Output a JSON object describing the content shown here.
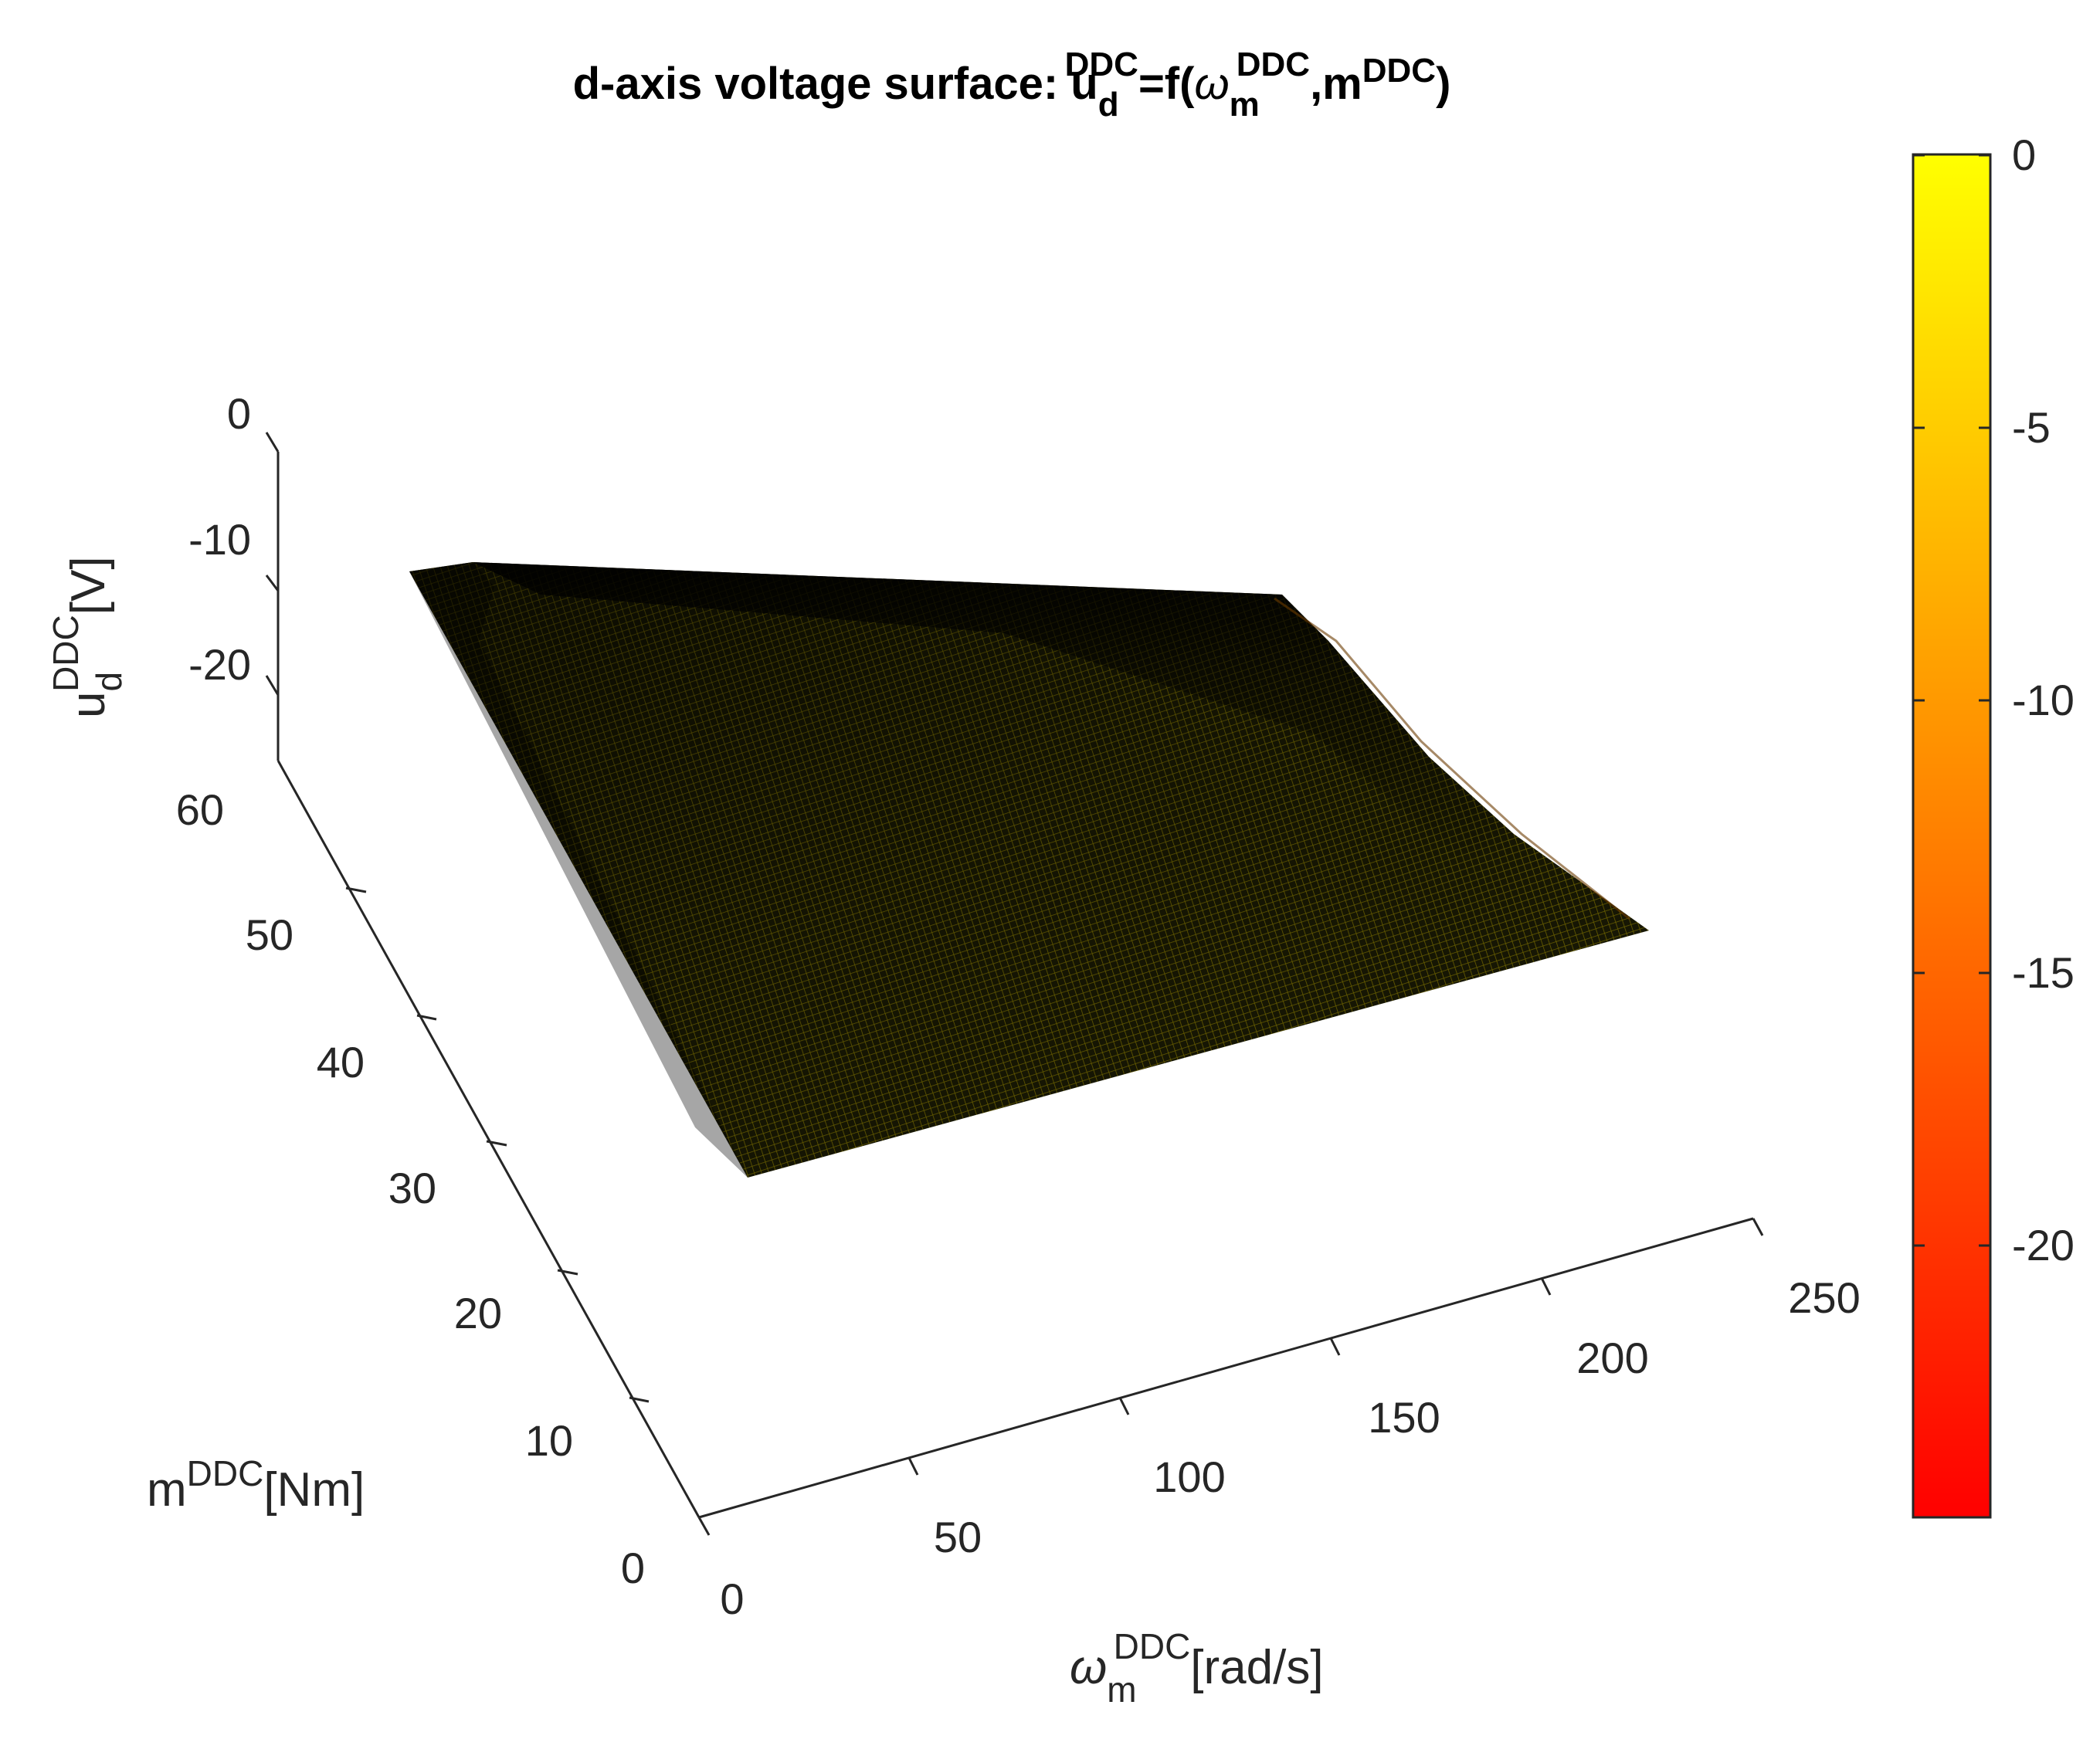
{
  "chart_data": {
    "type": "surface",
    "title": {
      "prefix": "d-axis voltage surface: u",
      "sub1": "d",
      "sup1": "DDC",
      "mid": "=f(",
      "omega": "ω",
      "sub2": "m",
      "sup2": "DDC",
      "comma": ",m",
      "sup3": "DDC",
      "close": ")"
    },
    "x_axis": {
      "label": {
        "symbol": "ω",
        "sub": "m",
        "sup": "DDC",
        "unit": "[rad/s]"
      },
      "ticks": [
        "0",
        "50",
        "100",
        "150",
        "200",
        "250"
      ],
      "range": [
        0,
        250
      ]
    },
    "y_axis": {
      "label": {
        "base": "m",
        "sup": "DDC",
        "unit": "[Nm]"
      },
      "ticks": [
        "0",
        "10",
        "20",
        "30",
        "40",
        "50",
        "60"
      ],
      "range": [
        0,
        60
      ]
    },
    "z_axis": {
      "label": {
        "base": "u",
        "sub": "d",
        "sup": "DDC",
        "unit": "[V]"
      },
      "ticks": [
        "0",
        "-10",
        "-20"
      ],
      "range": [
        -25,
        0
      ]
    },
    "colorbar": {
      "ticks": [
        "0",
        "-5",
        "-10",
        "-15",
        "-20"
      ],
      "range": [
        -25,
        0
      ],
      "colormap": "autumn",
      "colors": {
        "top": "#ffff00",
        "mid": "#ff8000",
        "bottom": "#ff0000"
      }
    },
    "surface_corners": [
      {
        "omega": 0,
        "m": 60,
        "u_d": -12
      },
      {
        "omega": 250,
        "m": 60,
        "u_d": -18
      },
      {
        "omega": 250,
        "m": 0,
        "u_d": -14
      },
      {
        "omega": 0,
        "m": 0,
        "u_d": -12
      }
    ],
    "colors": {
      "surface_dark": "#0b0b02",
      "surface_olive": "#4a4a08",
      "mesh_yellow": "#c8b000",
      "axis": "#262626",
      "text": "#262626"
    }
  }
}
